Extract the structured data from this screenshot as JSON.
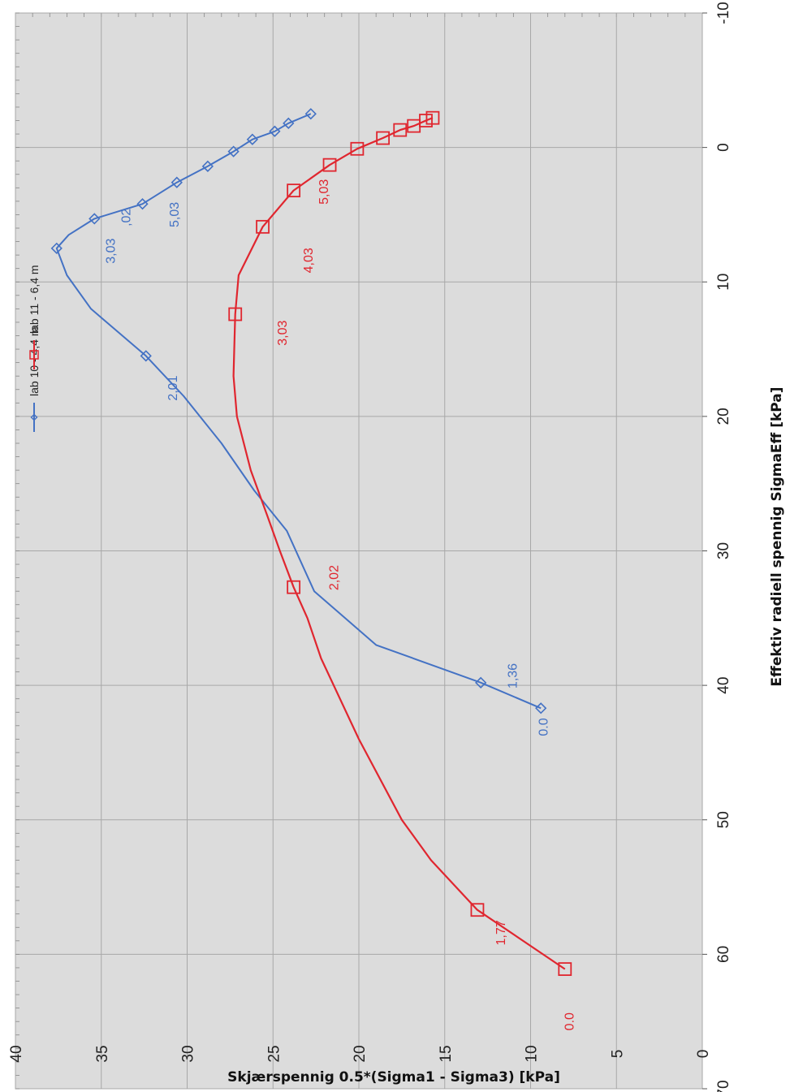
{
  "chart_data": {
    "type": "line",
    "orientation": "rotated-90-clockwise",
    "xlabel": "Effektiv radiell spennig SigmaEff [kPa]",
    "ylabel": "Skjærspennig 0.5*(Sigma1 - Sigma3) [kPa]",
    "xlim": [
      -10,
      70
    ],
    "ylim": [
      0,
      40
    ],
    "x_ticks": [
      "-10",
      "0",
      "10",
      "20",
      "30",
      "40",
      "50",
      "60",
      "70"
    ],
    "y_ticks": [
      "0",
      "5",
      "10",
      "15",
      "20",
      "25",
      "30",
      "35",
      "40"
    ],
    "grid": true,
    "legend_placement": "top",
    "series": [
      {
        "name": "lab 10 - 4,4 m",
        "color": "#4472c4",
        "marker": "diamond",
        "line": [
          [
            -2.5,
            22.8
          ],
          [
            -1.8,
            24.1
          ],
          [
            -1.2,
            24.9
          ],
          [
            -0.6,
            26.2
          ],
          [
            0.3,
            27.3
          ],
          [
            1.4,
            28.8
          ],
          [
            2.6,
            30.6
          ],
          [
            4.2,
            32.6
          ],
          [
            5.3,
            35.4
          ],
          [
            6.5,
            36.9
          ],
          [
            7.5,
            37.6
          ],
          [
            9.5,
            37.0
          ],
          [
            12.0,
            35.6
          ],
          [
            15.5,
            32.4
          ],
          [
            18.5,
            30.2
          ],
          [
            22.0,
            28.0
          ],
          [
            25.5,
            26.1
          ],
          [
            28.5,
            24.2
          ],
          [
            33.0,
            22.6
          ],
          [
            37.0,
            19.0
          ],
          [
            39.8,
            12.9
          ],
          [
            41.7,
            9.4
          ]
        ],
        "markers": [
          [
            -2.5,
            22.8
          ],
          [
            -1.8,
            24.1
          ],
          [
            -1.2,
            24.9
          ],
          [
            -0.6,
            26.2
          ],
          [
            0.3,
            27.3
          ],
          [
            1.4,
            28.8
          ],
          [
            2.6,
            30.6
          ],
          [
            4.2,
            32.6
          ],
          [
            5.3,
            35.4
          ],
          [
            7.5,
            37.6
          ],
          [
            15.5,
            32.4
          ],
          [
            39.8,
            12.9
          ],
          [
            41.7,
            9.4
          ]
        ]
      },
      {
        "name": "lab 11 - 6,4 m",
        "color": "#e0262f",
        "marker": "square",
        "line": [
          [
            -2.2,
            15.7
          ],
          [
            -2.0,
            16.1
          ],
          [
            -1.6,
            16.8
          ],
          [
            -1.3,
            17.6
          ],
          [
            -0.7,
            18.6
          ],
          [
            0.1,
            20.1
          ],
          [
            1.3,
            21.7
          ],
          [
            3.2,
            23.8
          ],
          [
            5.9,
            25.6
          ],
          [
            9.5,
            27.0
          ],
          [
            12.4,
            27.2
          ],
          [
            17.0,
            27.3
          ],
          [
            20.0,
            27.1
          ],
          [
            24.0,
            26.3
          ],
          [
            27.5,
            25.3
          ],
          [
            30.0,
            24.6
          ],
          [
            32.7,
            23.8
          ],
          [
            35.0,
            23.0
          ],
          [
            38.0,
            22.2
          ],
          [
            44.0,
            20.0
          ],
          [
            50.0,
            17.5
          ],
          [
            53.0,
            15.8
          ],
          [
            56.7,
            13.1
          ],
          [
            61.1,
            8.0
          ]
        ],
        "markers": [
          [
            -2.2,
            15.7
          ],
          [
            -2.0,
            16.1
          ],
          [
            -1.6,
            16.8
          ],
          [
            -1.3,
            17.6
          ],
          [
            -0.7,
            18.6
          ],
          [
            0.1,
            20.1
          ],
          [
            1.3,
            21.7
          ],
          [
            3.2,
            23.8
          ],
          [
            5.9,
            25.6
          ],
          [
            12.4,
            27.2
          ],
          [
            32.7,
            23.8
          ],
          [
            56.7,
            13.1
          ],
          [
            61.1,
            8.0
          ]
        ]
      }
    ],
    "annotations": [
      {
        "text": "3,03",
        "series": 0,
        "x": 7.7,
        "y": 34.2
      },
      {
        "text": ",02",
        "series": 0,
        "x": 5.2,
        "y": 33.3
      },
      {
        "text": "5,03",
        "series": 0,
        "x": 5.0,
        "y": 30.5
      },
      {
        "text": "2,01",
        "series": 0,
        "x": 17.9,
        "y": 30.6
      },
      {
        "text": "1,36",
        "series": 0,
        "x": 39.3,
        "y": 10.8
      },
      {
        "text": "0.0",
        "series": 0,
        "x": 43.1,
        "y": 9.0
      },
      {
        "text": "3,03",
        "series": 1,
        "x": 13.8,
        "y": 24.2
      },
      {
        "text": "4,03",
        "series": 1,
        "x": 8.4,
        "y": 22.7
      },
      {
        "text": "5,03",
        "series": 1,
        "x": 3.3,
        "y": 21.8
      },
      {
        "text": "2,02",
        "series": 1,
        "x": 32.0,
        "y": 21.2
      },
      {
        "text": "1,77",
        "series": 1,
        "x": 58.4,
        "y": 11.5
      },
      {
        "text": "0.0",
        "series": 1,
        "x": 65.0,
        "y": 7.5
      }
    ]
  }
}
